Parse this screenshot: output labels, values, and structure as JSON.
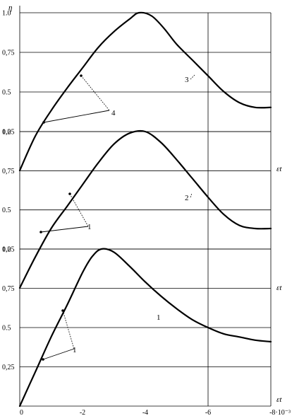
{
  "chart_data": {
    "type": "line",
    "title": "",
    "ylabel": "η",
    "xlabel": "εt",
    "x_unit_label": "·10⁻³",
    "xlim": [
      0,
      -8
    ],
    "x_ticks": [
      {
        "value": 0,
        "label": "0"
      },
      {
        "value": -2,
        "label": "-2"
      },
      {
        "value": -4,
        "label": "-4"
      },
      {
        "value": -6,
        "label": "-6"
      },
      {
        "value": -8,
        "label": "-8·10⁻³"
      }
    ],
    "vertical_reference_line_x": -6,
    "panels": [
      {
        "name": "top",
        "ylim": [
          0.25,
          1.0
        ],
        "y_ticks": [
          {
            "value": 1.0,
            "label": "1.0"
          },
          {
            "value": 0.75,
            "label": "0,75"
          },
          {
            "value": 0.5,
            "label": "0.5"
          },
          {
            "value": 0.25,
            "label": "0,25"
          }
        ],
        "axis_label": "η",
        "curve": {
          "label": "3",
          "x": [
            0,
            -0.5,
            -1,
            -1.5,
            -2,
            -2.5,
            -3,
            -3.5,
            -3.8,
            -4.2,
            -4.6,
            -5,
            -5.5,
            -6,
            -6.5,
            -7,
            -7.5,
            -8
          ],
          "y": [
            0.0,
            0.22,
            0.38,
            0.52,
            0.65,
            0.78,
            0.88,
            0.96,
            1.0,
            0.98,
            0.9,
            0.8,
            0.7,
            0.6,
            0.5,
            0.43,
            0.4,
            0.4
          ]
        },
        "annotation": {
          "label": "4"
        }
      },
      {
        "name": "middle",
        "ylim": [
          0.25,
          1.0
        ],
        "y_ticks": [
          {
            "value": 1.0,
            "label": "1.0"
          },
          {
            "value": 0.75,
            "label": "0,75"
          },
          {
            "value": 0.5,
            "label": "0.5"
          },
          {
            "value": 0.25,
            "label": "0,25"
          }
        ],
        "axis_label": "εt",
        "curve": {
          "label": "2",
          "x": [
            0,
            -0.5,
            -1,
            -1.5,
            -2,
            -2.5,
            -3,
            -3.5,
            -4,
            -4.5,
            -5,
            -5.5,
            -6,
            -6.5,
            -7,
            -7.5,
            -8
          ],
          "y": [
            0.0,
            0.2,
            0.38,
            0.52,
            0.66,
            0.8,
            0.92,
            0.99,
            1.0,
            0.93,
            0.82,
            0.7,
            0.58,
            0.47,
            0.4,
            0.38,
            0.38
          ]
        },
        "annotation": {
          "label": "1"
        }
      },
      {
        "name": "bottom",
        "ylim": [
          0.0,
          1.0
        ],
        "y_ticks": [
          {
            "value": 1.0,
            "label": "1.0"
          },
          {
            "value": 0.75,
            "label": "0,75"
          },
          {
            "value": 0.5,
            "label": "0.5"
          },
          {
            "value": 0.25,
            "label": "0,25"
          }
        ],
        "axis_label": "εt",
        "curve": {
          "label": "1",
          "x": [
            0,
            -0.5,
            -1,
            -1.5,
            -2,
            -2.3,
            -2.6,
            -3,
            -3.5,
            -4,
            -4.5,
            -5,
            -5.5,
            -6,
            -6.5,
            -7,
            -7.5,
            -8
          ],
          "y": [
            0.0,
            0.22,
            0.44,
            0.64,
            0.85,
            0.95,
            1.0,
            0.98,
            0.89,
            0.79,
            0.7,
            0.62,
            0.55,
            0.5,
            0.46,
            0.44,
            0.42,
            0.41
          ]
        },
        "annotation": {
          "label": "1"
        }
      }
    ]
  }
}
